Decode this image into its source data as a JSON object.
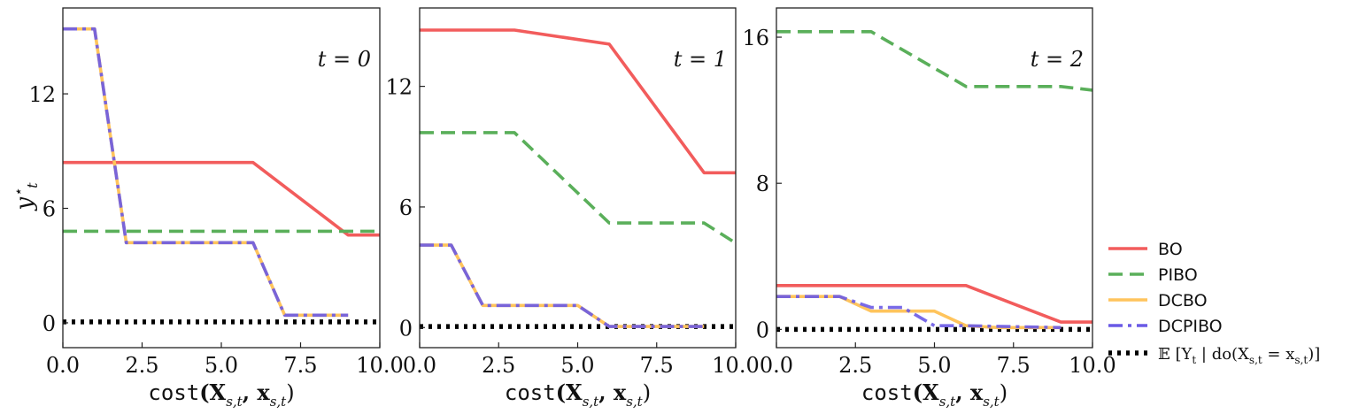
{
  "chart_data": {
    "type": "line",
    "xlabel_mono": "cost",
    "xlabel_math": "(X",
    "xlabel_sub": "s,t",
    "xlabel_mid": ", x",
    "xlabel_end": ")",
    "ylabel": "y",
    "ylabel_sup": "⋆",
    "ylabel_sub": "t",
    "legend_placement": "lower-right-outside",
    "series_styles": [
      {
        "name": "BO",
        "color": "#f25c5c",
        "dash": "solid"
      },
      {
        "name": "PIBO",
        "color": "#5aaf5a",
        "dash": "dashed"
      },
      {
        "name": "DCBO",
        "color": "#ffc45c",
        "dash": "solid"
      },
      {
        "name": "DCPIBO",
        "color": "#6a5ae6",
        "dash": "dashdot"
      },
      {
        "name": "𝔼[Y_t | do(X⋆_{s,t} = x⋆_{s,t})]",
        "color": "#000000",
        "dash": "dotted"
      }
    ],
    "legend": {
      "entries": [
        "BO",
        "PIBO",
        "DCBO",
        "DCPIBO"
      ],
      "math_entry": "𝔼 [Y",
      "math_entry_sub": "t",
      "math_entry_mid": " | do(X",
      "math_entry_sub2": "s,t",
      "math_entry_eq": " = x",
      "math_entry_sub3": "s,t",
      "math_entry_end": ")]"
    },
    "panels": [
      {
        "label": "t = 0",
        "xlim": [
          0,
          10
        ],
        "ylim": [
          -1.3,
          16.5
        ],
        "xticks": [
          "0.0",
          "2.5",
          "5.0",
          "7.5",
          "10.0"
        ],
        "yticks": [
          0,
          6,
          12
        ],
        "ytick_labels": [
          "0",
          "6",
          "12"
        ],
        "series": [
          {
            "name": "BO",
            "x": [
              0,
              6,
              9,
              10
            ],
            "y": [
              8.4,
              8.4,
              4.6,
              4.6
            ]
          },
          {
            "name": "PIBO",
            "x": [
              0,
              10
            ],
            "y": [
              4.8,
              4.8
            ]
          },
          {
            "name": "DCBO",
            "x": [
              0,
              1,
              2,
              6,
              7,
              9
            ],
            "y": [
              15.4,
              15.4,
              4.2,
              4.2,
              0.4,
              0.4
            ]
          },
          {
            "name": "DCPIBO",
            "x": [
              0,
              1,
              2,
              6,
              7,
              9
            ],
            "y": [
              15.4,
              15.4,
              4.2,
              4.2,
              0.4,
              0.4
            ]
          },
          {
            "name": "E",
            "x": [
              0,
              10
            ],
            "y": [
              0.05,
              0.05
            ]
          }
        ]
      },
      {
        "label": "t = 1",
        "xlim": [
          0,
          10
        ],
        "ylim": [
          -1.0,
          15.9
        ],
        "xticks": [
          "0.0",
          "2.5",
          "5.0",
          "7.5",
          "10.0"
        ],
        "yticks": [
          0,
          6,
          12
        ],
        "ytick_labels": [
          "0",
          "6",
          "12"
        ],
        "series": [
          {
            "name": "BO",
            "x": [
              0,
              3,
              6,
              9,
              10
            ],
            "y": [
              14.8,
              14.8,
              14.1,
              7.7,
              7.7
            ]
          },
          {
            "name": "PIBO",
            "x": [
              0,
              3,
              6,
              9,
              10
            ],
            "y": [
              9.7,
              9.7,
              5.2,
              5.2,
              4.2
            ]
          },
          {
            "name": "DCBO",
            "x": [
              0,
              1,
              2,
              5,
              6,
              9
            ],
            "y": [
              4.1,
              4.1,
              1.1,
              1.1,
              0.05,
              0.05
            ]
          },
          {
            "name": "DCPIBO",
            "x": [
              0,
              1,
              2,
              5,
              6,
              9
            ],
            "y": [
              4.1,
              4.1,
              1.1,
              1.1,
              0.05,
              0.05
            ]
          },
          {
            "name": "E",
            "x": [
              0,
              10
            ],
            "y": [
              0.05,
              0.05
            ]
          }
        ]
      },
      {
        "label": "t = 2",
        "xlim": [
          0,
          10
        ],
        "ylim": [
          -1.0,
          17.6
        ],
        "xticks": [
          "0.0",
          "2.5",
          "5.0",
          "7.5",
          "10.0"
        ],
        "yticks": [
          0,
          8,
          16
        ],
        "ytick_labels": [
          "0",
          "8",
          "16"
        ],
        "series": [
          {
            "name": "BO",
            "x": [
              0,
              6,
              9,
              10
            ],
            "y": [
              2.4,
              2.4,
              0.4,
              0.4
            ]
          },
          {
            "name": "PIBO",
            "x": [
              0,
              3,
              6,
              9,
              10
            ],
            "y": [
              16.3,
              16.3,
              13.3,
              13.3,
              13.1
            ]
          },
          {
            "name": "DCBO",
            "x": [
              0,
              2,
              3,
              5,
              6,
              7,
              9
            ],
            "y": [
              1.8,
              1.8,
              1.0,
              1.0,
              0.2,
              0.1,
              0.1
            ]
          },
          {
            "name": "DCPIBO",
            "x": [
              0,
              2,
              3,
              4,
              5,
              6,
              9
            ],
            "y": [
              1.8,
              1.8,
              1.2,
              1.2,
              0.2,
              0.2,
              0.1
            ]
          },
          {
            "name": "E",
            "x": [
              0,
              10
            ],
            "y": [
              0.0,
              0.0
            ]
          }
        ]
      }
    ]
  }
}
